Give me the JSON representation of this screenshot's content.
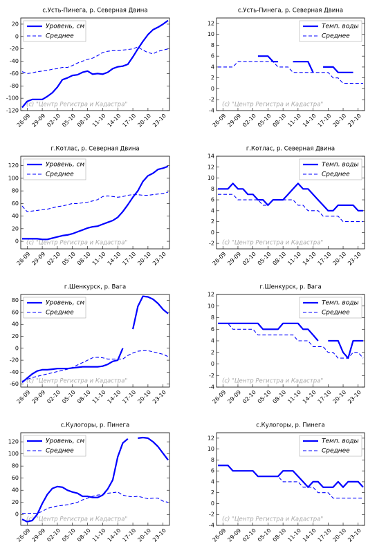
{
  "chart_data": [
    {
      "type": "line",
      "title": "с.Усть-Пинега, р. Северная Двина",
      "categories": [
        null,
        "26-09",
        null,
        null,
        "29-09",
        null,
        null,
        "02-10",
        null,
        null,
        "05-10",
        null,
        null,
        "08-10",
        null,
        null,
        "11-10",
        null,
        null,
        "14-10",
        null,
        null,
        "17-10",
        null,
        null,
        "20-10",
        null,
        null,
        "23-10",
        null
      ],
      "series": [
        {
          "name": "Уровень, см",
          "color": "#0000ff",
          "linestyle": "solid",
          "values": [
            -115,
            -105,
            -102,
            -102,
            -102,
            -97,
            -91,
            -82,
            -70,
            -67,
            -63,
            -62,
            -58,
            -56,
            -61,
            -60,
            -61,
            -58,
            -52,
            -49,
            -48,
            -45,
            -33,
            -20,
            -8,
            3,
            11,
            15,
            20,
            26
          ]
        },
        {
          "name": "Среднее",
          "color": "#0000ff",
          "linestyle": "dashed",
          "values": [
            -57,
            -60,
            -59,
            -57,
            -56,
            -55,
            -53,
            -52,
            -50,
            -50,
            -47,
            -43,
            -40,
            -37,
            -35,
            -31,
            -26,
            -24,
            -23,
            -23,
            -22,
            -21,
            -20,
            -17,
            -22,
            -26,
            -28,
            -24,
            -22,
            -20
          ]
        }
      ],
      "ylim": [
        -120,
        30
      ],
      "yticks": [
        -120,
        -100,
        -80,
        -60,
        -40,
        -20,
        0,
        20
      ],
      "legend": "upper left",
      "annotation": "(c) \"Центр Регистра и Кадастра\""
    },
    {
      "type": "line",
      "title": "с.Усть-Пинега, р. Северная Двина",
      "categories": [
        null,
        "26-09",
        null,
        null,
        "29-09",
        null,
        null,
        "02-10",
        null,
        null,
        "05-10",
        null,
        null,
        "08-10",
        null,
        null,
        "11-10",
        null,
        null,
        "14-10",
        null,
        null,
        "17-10",
        null,
        null,
        "20-10",
        null,
        null,
        "23-10",
        null
      ],
      "series": [
        {
          "name": "Темп. воды",
          "color": "#0000ff",
          "linestyle": "solid",
          "values": [
            null,
            null,
            null,
            null,
            null,
            null,
            null,
            null,
            6,
            6,
            6,
            5,
            5,
            null,
            null,
            5,
            5,
            5,
            5,
            3,
            null,
            4,
            4,
            4,
            3,
            3,
            3,
            3,
            null,
            null
          ]
        },
        {
          "name": "Среднее",
          "color": "#0000ff",
          "linestyle": "dashed",
          "values": [
            4,
            4,
            4,
            4,
            5,
            5,
            5,
            5,
            5,
            5,
            5,
            5,
            4,
            4,
            4,
            3,
            3,
            3,
            3,
            3,
            3,
            3,
            3,
            2,
            2,
            1,
            1,
            1,
            1,
            1
          ]
        }
      ],
      "ylim": [
        -4,
        13
      ],
      "yticks": [
        -4,
        -2,
        0,
        2,
        4,
        6,
        8,
        10,
        12
      ],
      "legend": "upper right",
      "annotation": "(c) \"Центр Регистра и Кадастра\""
    },
    {
      "type": "line",
      "title": "г.Котлас, р. Северная Двина",
      "categories": [
        null,
        "26-09",
        null,
        null,
        "29-09",
        null,
        null,
        "02-10",
        null,
        null,
        "05-10",
        null,
        null,
        "08-10",
        null,
        null,
        "11-10",
        null,
        null,
        "14-10",
        null,
        null,
        "17-10",
        null,
        null,
        "20-10",
        null,
        null,
        "23-10",
        null
      ],
      "series": [
        {
          "name": "Уровень, см",
          "color": "#0000ff",
          "linestyle": "solid",
          "values": [
            4,
            4,
            4,
            4,
            3,
            3,
            5,
            7,
            9,
            10,
            12,
            15,
            18,
            21,
            23,
            24,
            27,
            30,
            33,
            38,
            47,
            58,
            70,
            80,
            95,
            104,
            108,
            114,
            116,
            119
          ]
        },
        {
          "name": "Среднее",
          "color": "#0000ff",
          "linestyle": "dashed",
          "values": [
            56,
            47,
            48,
            49,
            50,
            51,
            53,
            55,
            56,
            58,
            60,
            60,
            61,
            62,
            64,
            66,
            71,
            72,
            71,
            70,
            71,
            73,
            74,
            74,
            73,
            73,
            74,
            75,
            76,
            78
          ]
        }
      ],
      "ylim": [
        -12,
        135
      ],
      "yticks": [
        0,
        20,
        40,
        60,
        80,
        100,
        120
      ],
      "legend": "upper left",
      "annotation": "(c) \"Центр Регистра и Кадастра\""
    },
    {
      "type": "line",
      "title": "г.Котлас, р. Северная Двина",
      "categories": [
        null,
        "26-09",
        null,
        null,
        "29-09",
        null,
        null,
        "02-10",
        null,
        null,
        "05-10",
        null,
        null,
        "08-10",
        null,
        null,
        "11-10",
        null,
        null,
        "14-10",
        null,
        null,
        "17-10",
        null,
        null,
        "20-10",
        null,
        null,
        "23-10",
        null
      ],
      "series": [
        {
          "name": "Темп. воды",
          "color": "#0000ff",
          "linestyle": "solid",
          "values": [
            8,
            8,
            8,
            9,
            8,
            8,
            7,
            7,
            6,
            6,
            5,
            6,
            6,
            6,
            7,
            8,
            9,
            8,
            8,
            7,
            6,
            5,
            4,
            4,
            5,
            5,
            5,
            5,
            4,
            4
          ]
        },
        {
          "name": "Среднее",
          "color": "#0000ff",
          "linestyle": "dashed",
          "values": [
            7,
            7,
            7,
            7,
            6,
            6,
            6,
            6,
            6,
            5,
            5,
            6,
            6,
            6,
            6,
            6,
            5,
            5,
            4,
            4,
            4,
            3,
            3,
            3,
            3,
            2,
            2,
            2,
            2,
            2
          ]
        }
      ],
      "ylim": [
        -3,
        14
      ],
      "yticks": [
        -2,
        0,
        2,
        4,
        6,
        8,
        10,
        12,
        14
      ],
      "legend": "upper right",
      "annotation": "(c) \"Центр Регистра и Кадастра\""
    },
    {
      "type": "line",
      "title": "г.Шенкурск, р. Вага",
      "categories": [
        null,
        "26-09",
        null,
        null,
        "29-09",
        null,
        null,
        "02-10",
        null,
        null,
        "05-10",
        null,
        null,
        "08-10",
        null,
        null,
        "11-10",
        null,
        null,
        "14-10",
        null,
        null,
        "17-10",
        null,
        null,
        "20-10",
        null,
        null,
        "23-10",
        null
      ],
      "series": [
        {
          "name": "Уровень, см",
          "color": "#0000ff",
          "linestyle": "solid",
          "values": [
            -57,
            -50,
            -43,
            -38,
            -36,
            -36,
            -35,
            -34,
            -34,
            -34,
            -33,
            -32,
            -31,
            -31,
            -31,
            -31,
            -30,
            -27,
            -22,
            -20,
            0,
            null,
            32,
            70,
            87,
            86,
            82,
            75,
            65,
            58
          ]
        },
        {
          "name": "Среднее",
          "color": "#0000ff",
          "linestyle": "dashed",
          "values": [
            -55,
            -52,
            -49,
            -47,
            -45,
            -43,
            -41,
            -39,
            -37,
            -35,
            -32,
            -28,
            -24,
            -20,
            -16,
            -15,
            -16,
            -18,
            -18,
            -18,
            -18,
            -12,
            -8,
            -5,
            -4,
            -4,
            -6,
            -8,
            -10,
            -14
          ]
        }
      ],
      "ylim": [
        -65,
        90
      ],
      "yticks": [
        -60,
        -40,
        -20,
        0,
        20,
        40,
        60,
        80
      ],
      "legend": "upper left",
      "annotation": "(c) \"Центр Регистра и Кадастра\""
    },
    {
      "type": "line",
      "title": "г.Шенкурск, р. Вага",
      "categories": [
        null,
        "26-09",
        null,
        null,
        "29-09",
        null,
        null,
        "02-10",
        null,
        null,
        "05-10",
        null,
        null,
        "08-10",
        null,
        null,
        "11-10",
        null,
        null,
        "14-10",
        null,
        null,
        "17-10",
        null,
        null,
        "20-10",
        null,
        null,
        "23-10",
        null
      ],
      "series": [
        {
          "name": "Темп. воды",
          "color": "#0000ff",
          "linestyle": "solid",
          "values": [
            7,
            7,
            7,
            7,
            7,
            7,
            7,
            7,
            7,
            6,
            6,
            6,
            6,
            7,
            7,
            7,
            7,
            6,
            6,
            5,
            4,
            null,
            4,
            4,
            4,
            2,
            1,
            4,
            4,
            4
          ]
        },
        {
          "name": "Среднее",
          "color": "#0000ff",
          "linestyle": "dashed",
          "values": [
            7,
            7,
            7,
            6,
            6,
            6,
            6,
            6,
            5,
            5,
            5,
            5,
            5,
            5,
            5,
            5,
            4,
            4,
            4,
            3,
            3,
            3,
            2,
            2,
            1,
            1,
            1,
            2,
            2,
            1
          ]
        }
      ],
      "ylim": [
        -4,
        12
      ],
      "yticks": [
        -4,
        -2,
        0,
        2,
        4,
        6,
        8,
        10,
        12
      ],
      "legend": "upper right",
      "annotation": "(c) \"Центр Регистра и Кадастра\""
    },
    {
      "type": "line",
      "title": "с.Кулогоры, р. Пинега",
      "categories": [
        null,
        "26-09",
        null,
        null,
        "29-09",
        null,
        null,
        "02-10",
        null,
        null,
        "05-10",
        null,
        null,
        "08-10",
        null,
        null,
        "11-10",
        null,
        null,
        "14-10",
        null,
        null,
        "17-10",
        null,
        null,
        "20-10",
        null,
        null,
        "23-10",
        null
      ],
      "series": [
        {
          "name": "Уровень, см",
          "color": "#0000ff",
          "linestyle": "solid",
          "values": [
            -8,
            -12,
            -10,
            0,
            18,
            33,
            43,
            46,
            45,
            40,
            37,
            35,
            30,
            30,
            28,
            28,
            32,
            42,
            57,
            95,
            118,
            125,
            null,
            126,
            127,
            126,
            120,
            112,
            101,
            90
          ]
        },
        {
          "name": "Среднее",
          "color": "#0000ff",
          "linestyle": "dashed",
          "values": [
            2,
            2,
            2,
            2,
            5,
            10,
            12,
            14,
            15,
            16,
            18,
            20,
            24,
            27,
            30,
            32,
            33,
            35,
            36,
            37,
            32,
            30,
            29,
            30,
            28,
            26,
            27,
            27,
            22,
            20
          ]
        }
      ],
      "ylim": [
        -18,
        135
      ],
      "yticks": [
        0,
        20,
        40,
        60,
        80,
        100,
        120
      ],
      "legend": "upper left",
      "annotation": "(c) \"Центр Регистра и Кадастра\""
    },
    {
      "type": "line",
      "title": "с.Кулогоры, р. Пинега",
      "categories": [
        null,
        "26-09",
        null,
        null,
        "29-09",
        null,
        null,
        "02-10",
        null,
        null,
        "05-10",
        null,
        null,
        "08-10",
        null,
        null,
        "11-10",
        null,
        null,
        "14-10",
        null,
        null,
        "17-10",
        null,
        null,
        "20-10",
        null,
        null,
        "23-10",
        null
      ],
      "series": [
        {
          "name": "Темп. воды",
          "color": "#0000ff",
          "linestyle": "solid",
          "values": [
            7,
            7,
            7,
            6,
            6,
            6,
            6,
            6,
            5,
            5,
            5,
            5,
            5,
            6,
            6,
            6,
            5,
            4,
            3,
            4,
            4,
            3,
            3,
            3,
            4,
            3,
            4,
            4,
            4,
            3
          ]
        },
        {
          "name": "Среднее",
          "color": "#0000ff",
          "linestyle": "dashed",
          "values": [
            7,
            7,
            7,
            6,
            6,
            6,
            6,
            6,
            5,
            5,
            5,
            5,
            5,
            4,
            4,
            4,
            4,
            3,
            3,
            3,
            2,
            2,
            2,
            1,
            1,
            1,
            1,
            1,
            1,
            1
          ]
        }
      ],
      "ylim": [
        -4,
        13
      ],
      "yticks": [
        -4,
        -2,
        0,
        2,
        4,
        6,
        8,
        10,
        12
      ],
      "legend": "upper right",
      "annotation": "(c) \"Центр Регистра и Кадастра\""
    }
  ]
}
